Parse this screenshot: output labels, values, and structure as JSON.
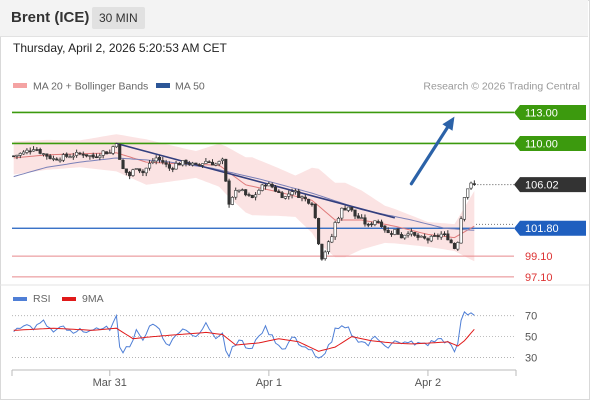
{
  "header": {
    "instrument": "Brent (ICE)",
    "timeframe": "30 MIN"
  },
  "datetime": "Thursday, April 2, 2026 5:20:53 AM CET",
  "legend": {
    "items": [
      {
        "label": "MA 20 + Bollinger Bands",
        "color": "#f4a3a3"
      },
      {
        "label": "MA 50",
        "color": "#2c5697"
      }
    ],
    "copyright": "Research © 2026 Trading Central"
  },
  "colors": {
    "resistance": "#3c9a0e",
    "pivot": "#1f5fbf",
    "support": "#e8898c",
    "arrow": "#2b62a8",
    "last_price_bg": "#333333",
    "candle_up": "#ffffff",
    "candle_down": "#333333",
    "bollinger": "#fbe3e3",
    "ma20": "#e07a7a",
    "ma50": "#7a80b8",
    "trendline": "#333f7e",
    "rsi": "#4f7fd6",
    "rsi_ma": "#e01a1a"
  },
  "chart_data": [
    {
      "type": "candlestick",
      "ylim": [
        96.6,
        114.4
      ],
      "price_labels": [
        {
          "value": 113.0,
          "label": "113.00",
          "kind": "resistance"
        },
        {
          "value": 110.0,
          "label": "110.00",
          "kind": "resistance"
        },
        {
          "value": 106.02,
          "label": "106.02",
          "kind": "last"
        },
        {
          "value": 101.8,
          "label": "101.80",
          "kind": "pivot"
        },
        {
          "value": 99.1,
          "label": "99.10",
          "kind": "support"
        },
        {
          "value": 97.1,
          "label": "97.10",
          "kind": "support"
        }
      ],
      "x_ticks": [
        {
          "index": 29,
          "label": "Mar 31"
        },
        {
          "index": 77,
          "label": "Apr 1"
        },
        {
          "index": 125,
          "label": "Apr 2"
        }
      ],
      "n_bars": 140,
      "trendline": {
        "from": {
          "index": 31,
          "value": 110.0
        },
        "to": {
          "index": 115,
          "value": 102.8
        }
      },
      "projection_arrow": {
        "from": {
          "index": 120,
          "value": 106.1
        },
        "to": {
          "index": 133,
          "value": 112.6
        }
      },
      "waypoints": [
        [
          0,
          108.8
        ],
        [
          3,
          109.1
        ],
        [
          6,
          109.6
        ],
        [
          9,
          109.0
        ],
        [
          12,
          108.5
        ],
        [
          15,
          108.7
        ],
        [
          18,
          108.9
        ],
        [
          21,
          109.0
        ],
        [
          24,
          108.7
        ],
        [
          27,
          109.2
        ],
        [
          29,
          109.1
        ],
        [
          30,
          109.7
        ],
        [
          31,
          110.2
        ],
        [
          32,
          108.3
        ],
        [
          33,
          107.5
        ],
        [
          35,
          106.9
        ],
        [
          37,
          107.8
        ],
        [
          39,
          107.2
        ],
        [
          41,
          108.0
        ],
        [
          43,
          108.6
        ],
        [
          45,
          108.2
        ],
        [
          47,
          107.6
        ],
        [
          49,
          108.0
        ],
        [
          52,
          108.2
        ],
        [
          55,
          107.8
        ],
        [
          58,
          108.3
        ],
        [
          61,
          108.0
        ],
        [
          63,
          108.3
        ],
        [
          64,
          106.2
        ],
        [
          65,
          104.3
        ],
        [
          66,
          104.9
        ],
        [
          68,
          105.6
        ],
        [
          70,
          105.0
        ],
        [
          72,
          104.7
        ],
        [
          74,
          105.5
        ],
        [
          76,
          106.1
        ],
        [
          78,
          105.8
        ],
        [
          80,
          105.2
        ],
        [
          82,
          104.8
        ],
        [
          84,
          105.5
        ],
        [
          86,
          105.0
        ],
        [
          88,
          104.6
        ],
        [
          90,
          104.3
        ],
        [
          91,
          102.8
        ],
        [
          92,
          100.5
        ],
        [
          93,
          99.0
        ],
        [
          94,
          99.6
        ],
        [
          96,
          101.0
        ],
        [
          97,
          102.3
        ],
        [
          99,
          103.6
        ],
        [
          101,
          103.9
        ],
        [
          103,
          103.0
        ],
        [
          105,
          102.6
        ],
        [
          107,
          102.0
        ],
        [
          109,
          102.6
        ],
        [
          111,
          102.2
        ],
        [
          113,
          101.3
        ],
        [
          115,
          101.6
        ],
        [
          117,
          101.0
        ],
        [
          119,
          101.5
        ],
        [
          121,
          101.0
        ],
        [
          123,
          100.8
        ],
        [
          125,
          100.7
        ],
        [
          127,
          100.9
        ],
        [
          129,
          101.2
        ],
        [
          131,
          100.9
        ],
        [
          132,
          100.4
        ],
        [
          133,
          99.9
        ],
        [
          134,
          100.6
        ],
        [
          135,
          102.8
        ],
        [
          136,
          105.0
        ],
        [
          137,
          105.7
        ],
        [
          138,
          106.0
        ],
        [
          139,
          106.02
        ]
      ],
      "ma50_waypoints": [
        [
          0,
          106.8
        ],
        [
          10,
          107.7
        ],
        [
          20,
          108.2
        ],
        [
          31,
          108.6
        ],
        [
          45,
          108.3
        ],
        [
          60,
          107.6
        ],
        [
          75,
          106.5
        ],
        [
          90,
          105.2
        ],
        [
          105,
          103.6
        ],
        [
          120,
          102.6
        ],
        [
          130,
          101.8
        ],
        [
          139,
          101.6
        ]
      ],
      "ma20_waypoints": [
        [
          0,
          108.6
        ],
        [
          10,
          108.9
        ],
        [
          20,
          109.0
        ],
        [
          31,
          109.1
        ],
        [
          40,
          108.2
        ],
        [
          52,
          108.0
        ],
        [
          62,
          107.9
        ],
        [
          70,
          106.0
        ],
        [
          80,
          105.3
        ],
        [
          90,
          104.5
        ],
        [
          97,
          102.6
        ],
        [
          105,
          102.6
        ],
        [
          115,
          102.0
        ],
        [
          125,
          101.2
        ],
        [
          133,
          100.9
        ],
        [
          139,
          102.0
        ]
      ],
      "bb_width_waypoints": [
        [
          0,
          1.6
        ],
        [
          20,
          1.3
        ],
        [
          31,
          1.8
        ],
        [
          40,
          2.2
        ],
        [
          55,
          1.3
        ],
        [
          64,
          2.3
        ],
        [
          72,
          2.8
        ],
        [
          85,
          2.0
        ],
        [
          92,
          3.6
        ],
        [
          100,
          3.6
        ],
        [
          112,
          1.8
        ],
        [
          125,
          1.2
        ],
        [
          133,
          1.3
        ],
        [
          139,
          3.4
        ]
      ]
    },
    {
      "type": "line",
      "series": [
        {
          "name": "RSI",
          "color": "#4f7fd6"
        },
        {
          "name": "9MA",
          "color": "#e01a1a"
        }
      ],
      "ylim": [
        20,
        85
      ],
      "y_ticks": [
        70,
        50,
        30
      ],
      "rsi_waypoints": [
        [
          0,
          56
        ],
        [
          3,
          62
        ],
        [
          6,
          58
        ],
        [
          9,
          64
        ],
        [
          12,
          54
        ],
        [
          15,
          59
        ],
        [
          18,
          52
        ],
        [
          21,
          57
        ],
        [
          24,
          54
        ],
        [
          27,
          60
        ],
        [
          29,
          57
        ],
        [
          31,
          68
        ],
        [
          32,
          42
        ],
        [
          33,
          36
        ],
        [
          35,
          42
        ],
        [
          37,
          55
        ],
        [
          39,
          45
        ],
        [
          41,
          60
        ],
        [
          43,
          62
        ],
        [
          45,
          50
        ],
        [
          47,
          40
        ],
        [
          49,
          54
        ],
        [
          52,
          58
        ],
        [
          55,
          48
        ],
        [
          58,
          62
        ],
        [
          61,
          50
        ],
        [
          63,
          55
        ],
        [
          64,
          37
        ],
        [
          65,
          32
        ],
        [
          66,
          40
        ],
        [
          68,
          48
        ],
        [
          70,
          40
        ],
        [
          72,
          38
        ],
        [
          74,
          52
        ],
        [
          76,
          58
        ],
        [
          78,
          50
        ],
        [
          80,
          42
        ],
        [
          82,
          38
        ],
        [
          84,
          50
        ],
        [
          86,
          44
        ],
        [
          88,
          40
        ],
        [
          90,
          36
        ],
        [
          91,
          30
        ],
        [
          92,
          28
        ],
        [
          93,
          30
        ],
        [
          94,
          36
        ],
        [
          96,
          46
        ],
        [
          97,
          56
        ],
        [
          99,
          58
        ],
        [
          101,
          57
        ],
        [
          103,
          48
        ],
        [
          105,
          46
        ],
        [
          107,
          42
        ],
        [
          109,
          50
        ],
        [
          111,
          46
        ],
        [
          113,
          40
        ],
        [
          115,
          45
        ],
        [
          117,
          42
        ],
        [
          119,
          46
        ],
        [
          121,
          42
        ],
        [
          123,
          44
        ],
        [
          125,
          43
        ],
        [
          127,
          46
        ],
        [
          129,
          48
        ],
        [
          131,
          44
        ],
        [
          132,
          40
        ],
        [
          133,
          36
        ],
        [
          134,
          42
        ],
        [
          135,
          66
        ],
        [
          136,
          73
        ],
        [
          137,
          72
        ],
        [
          138,
          73
        ],
        [
          139,
          72
        ]
      ],
      "ma_waypoints": [
        [
          0,
          56
        ],
        [
          12,
          58
        ],
        [
          24,
          56
        ],
        [
          31,
          58
        ],
        [
          36,
          48
        ],
        [
          42,
          50
        ],
        [
          50,
          52
        ],
        [
          58,
          54
        ],
        [
          63,
          52
        ],
        [
          67,
          42
        ],
        [
          74,
          44
        ],
        [
          80,
          48
        ],
        [
          86,
          45
        ],
        [
          92,
          36
        ],
        [
          97,
          40
        ],
        [
          102,
          50
        ],
        [
          108,
          46
        ],
        [
          114,
          44
        ],
        [
          120,
          43
        ],
        [
          126,
          44
        ],
        [
          131,
          45
        ],
        [
          134,
          41
        ],
        [
          136,
          46
        ],
        [
          139,
          57
        ]
      ]
    }
  ]
}
